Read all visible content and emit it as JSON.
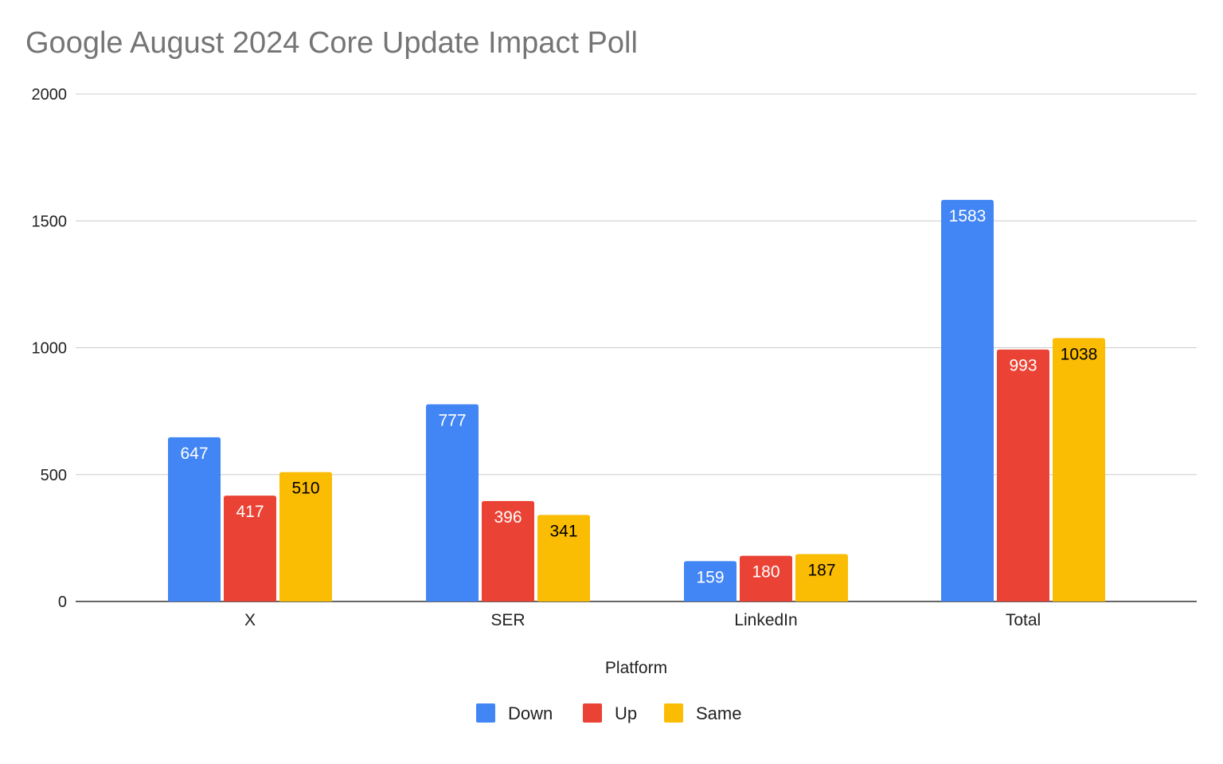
{
  "chart_data": {
    "type": "bar",
    "title": "Google August 2024 Core Update Impact Poll",
    "xlabel": "Platform",
    "ylabel": "",
    "categories": [
      "X",
      "SER",
      "LinkedIn",
      "Total"
    ],
    "series": [
      {
        "name": "Down",
        "color": "#4285F4",
        "label_color": "#ffffff",
        "values": [
          647,
          777,
          159,
          1583
        ]
      },
      {
        "name": "Up",
        "color": "#EA4335",
        "label_color": "#ffffff",
        "values": [
          417,
          396,
          180,
          993
        ]
      },
      {
        "name": "Same",
        "color": "#FBBC04",
        "label_color": "#000000",
        "values": [
          510,
          341,
          187,
          1038
        ]
      }
    ],
    "ylim": [
      0,
      2000
    ],
    "yticks": [
      0,
      500,
      1000,
      1500,
      2000
    ],
    "grid": true,
    "legend_position": "bottom",
    "data_labels": true
  }
}
